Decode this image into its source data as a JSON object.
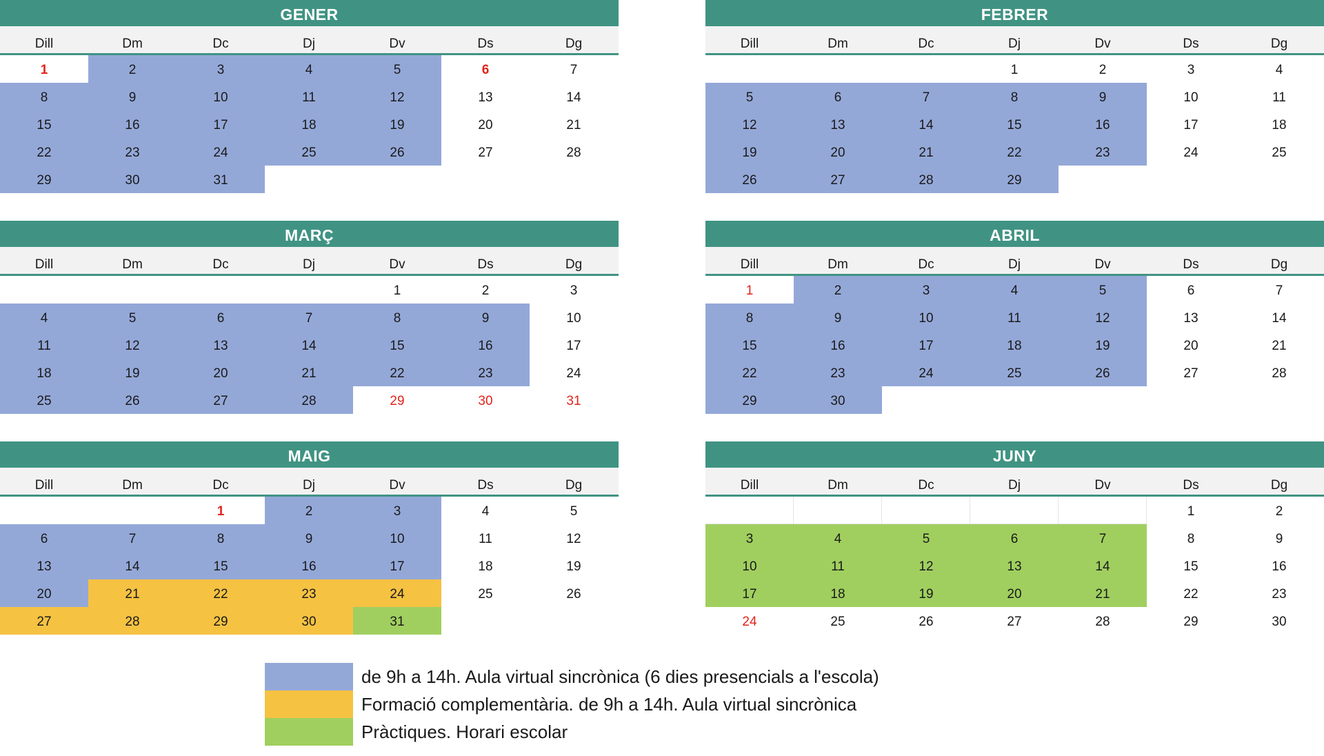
{
  "colors": {
    "header": "#409383",
    "header_line": "#409383",
    "blue": "#94a8d8",
    "yellow": "#f5c242",
    "green": "#a0cf5f",
    "red": "#e0241b"
  },
  "weekdays": [
    "Dill",
    "Dm",
    "Dc",
    "Dj",
    "Dv",
    "Ds",
    "Dg"
  ],
  "months": [
    {
      "name": "GENER",
      "cells": [
        {
          "t": "1",
          "c": "",
          "r": true,
          "b": true
        },
        {
          "t": "2",
          "c": "blue"
        },
        {
          "t": "3",
          "c": "blue"
        },
        {
          "t": "4",
          "c": "blue"
        },
        {
          "t": "5",
          "c": "blue"
        },
        {
          "t": "6",
          "c": "",
          "r": true,
          "b": true
        },
        {
          "t": "7",
          "c": ""
        },
        {
          "t": "8",
          "c": "blue"
        },
        {
          "t": "9",
          "c": "blue"
        },
        {
          "t": "10",
          "c": "blue"
        },
        {
          "t": "11",
          "c": "blue"
        },
        {
          "t": "12",
          "c": "blue"
        },
        {
          "t": "13",
          "c": ""
        },
        {
          "t": "14",
          "c": ""
        },
        {
          "t": "15",
          "c": "blue"
        },
        {
          "t": "16",
          "c": "blue"
        },
        {
          "t": "17",
          "c": "blue"
        },
        {
          "t": "18",
          "c": "blue"
        },
        {
          "t": "19",
          "c": "blue"
        },
        {
          "t": "20",
          "c": ""
        },
        {
          "t": "21",
          "c": ""
        },
        {
          "t": "22",
          "c": "blue"
        },
        {
          "t": "23",
          "c": "blue"
        },
        {
          "t": "24",
          "c": "blue"
        },
        {
          "t": "25",
          "c": "blue"
        },
        {
          "t": "26",
          "c": "blue"
        },
        {
          "t": "27",
          "c": ""
        },
        {
          "t": "28",
          "c": ""
        },
        {
          "t": "29",
          "c": "blue"
        },
        {
          "t": "30",
          "c": "blue"
        },
        {
          "t": "31",
          "c": "blue"
        },
        {
          "t": "",
          "c": ""
        },
        {
          "t": "",
          "c": ""
        },
        {
          "t": "",
          "c": ""
        },
        {
          "t": "",
          "c": ""
        }
      ]
    },
    {
      "name": "FEBRER",
      "cells": [
        {
          "t": "",
          "c": ""
        },
        {
          "t": "",
          "c": ""
        },
        {
          "t": "",
          "c": ""
        },
        {
          "t": "1",
          "c": ""
        },
        {
          "t": "2",
          "c": ""
        },
        {
          "t": "3",
          "c": ""
        },
        {
          "t": "4",
          "c": ""
        },
        {
          "t": "5",
          "c": "blue"
        },
        {
          "t": "6",
          "c": "blue"
        },
        {
          "t": "7",
          "c": "blue"
        },
        {
          "t": "8",
          "c": "blue"
        },
        {
          "t": "9",
          "c": "blue"
        },
        {
          "t": "10",
          "c": ""
        },
        {
          "t": "11",
          "c": ""
        },
        {
          "t": "12",
          "c": "blue"
        },
        {
          "t": "13",
          "c": "blue"
        },
        {
          "t": "14",
          "c": "blue"
        },
        {
          "t": "15",
          "c": "blue"
        },
        {
          "t": "16",
          "c": "blue"
        },
        {
          "t": "17",
          "c": ""
        },
        {
          "t": "18",
          "c": ""
        },
        {
          "t": "19",
          "c": "blue"
        },
        {
          "t": "20",
          "c": "blue"
        },
        {
          "t": "21",
          "c": "blue"
        },
        {
          "t": "22",
          "c": "blue"
        },
        {
          "t": "23",
          "c": "blue"
        },
        {
          "t": "24",
          "c": ""
        },
        {
          "t": "25",
          "c": ""
        },
        {
          "t": "26",
          "c": "blue"
        },
        {
          "t": "27",
          "c": "blue"
        },
        {
          "t": "28",
          "c": "blue"
        },
        {
          "t": "29",
          "c": "blue"
        },
        {
          "t": "",
          "c": ""
        },
        {
          "t": "",
          "c": ""
        },
        {
          "t": "",
          "c": ""
        }
      ]
    },
    {
      "name": "MARÇ",
      "cells": [
        {
          "t": "",
          "c": ""
        },
        {
          "t": "",
          "c": ""
        },
        {
          "t": "",
          "c": ""
        },
        {
          "t": "",
          "c": ""
        },
        {
          "t": "1",
          "c": ""
        },
        {
          "t": "2",
          "c": ""
        },
        {
          "t": "3",
          "c": ""
        },
        {
          "t": "4",
          "c": "blue"
        },
        {
          "t": "5",
          "c": "blue"
        },
        {
          "t": "6",
          "c": "blue"
        },
        {
          "t": "7",
          "c": "blue"
        },
        {
          "t": "8",
          "c": "blue"
        },
        {
          "t": "9",
          "c": "blue"
        },
        {
          "t": "10",
          "c": ""
        },
        {
          "t": "11",
          "c": "blue"
        },
        {
          "t": "12",
          "c": "blue"
        },
        {
          "t": "13",
          "c": "blue"
        },
        {
          "t": "14",
          "c": "blue"
        },
        {
          "t": "15",
          "c": "blue"
        },
        {
          "t": "16",
          "c": "blue"
        },
        {
          "t": "17",
          "c": ""
        },
        {
          "t": "18",
          "c": "blue"
        },
        {
          "t": "19",
          "c": "blue"
        },
        {
          "t": "20",
          "c": "blue"
        },
        {
          "t": "21",
          "c": "blue"
        },
        {
          "t": "22",
          "c": "blue"
        },
        {
          "t": "23",
          "c": "blue"
        },
        {
          "t": "24",
          "c": ""
        },
        {
          "t": "25",
          "c": "blue"
        },
        {
          "t": "26",
          "c": "blue"
        },
        {
          "t": "27",
          "c": "blue"
        },
        {
          "t": "28",
          "c": "blue"
        },
        {
          "t": "29",
          "c": "",
          "r": true
        },
        {
          "t": "30",
          "c": "",
          "r": true
        },
        {
          "t": "31",
          "c": "",
          "r": true
        }
      ]
    },
    {
      "name": "ABRIL",
      "cells": [
        {
          "t": "1",
          "c": "",
          "r": true
        },
        {
          "t": "2",
          "c": "blue"
        },
        {
          "t": "3",
          "c": "blue"
        },
        {
          "t": "4",
          "c": "blue"
        },
        {
          "t": "5",
          "c": "blue"
        },
        {
          "t": "6",
          "c": ""
        },
        {
          "t": "7",
          "c": ""
        },
        {
          "t": "8",
          "c": "blue"
        },
        {
          "t": "9",
          "c": "blue"
        },
        {
          "t": "10",
          "c": "blue"
        },
        {
          "t": "11",
          "c": "blue"
        },
        {
          "t": "12",
          "c": "blue"
        },
        {
          "t": "13",
          "c": ""
        },
        {
          "t": "14",
          "c": ""
        },
        {
          "t": "15",
          "c": "blue"
        },
        {
          "t": "16",
          "c": "blue"
        },
        {
          "t": "17",
          "c": "blue"
        },
        {
          "t": "18",
          "c": "blue"
        },
        {
          "t": "19",
          "c": "blue"
        },
        {
          "t": "20",
          "c": ""
        },
        {
          "t": "21",
          "c": ""
        },
        {
          "t": "22",
          "c": "blue"
        },
        {
          "t": "23",
          "c": "blue"
        },
        {
          "t": "24",
          "c": "blue"
        },
        {
          "t": "25",
          "c": "blue"
        },
        {
          "t": "26",
          "c": "blue"
        },
        {
          "t": "27",
          "c": ""
        },
        {
          "t": "28",
          "c": ""
        },
        {
          "t": "29",
          "c": "blue"
        },
        {
          "t": "30",
          "c": "blue"
        },
        {
          "t": "",
          "c": ""
        },
        {
          "t": "",
          "c": ""
        },
        {
          "t": "",
          "c": ""
        },
        {
          "t": "",
          "c": ""
        },
        {
          "t": "",
          "c": ""
        }
      ]
    },
    {
      "name": "MAIG",
      "cells": [
        {
          "t": "",
          "c": ""
        },
        {
          "t": "",
          "c": ""
        },
        {
          "t": "1",
          "c": "",
          "r": true,
          "b": true
        },
        {
          "t": "2",
          "c": "blue"
        },
        {
          "t": "3",
          "c": "blue"
        },
        {
          "t": "4",
          "c": ""
        },
        {
          "t": "5",
          "c": ""
        },
        {
          "t": "6",
          "c": "blue"
        },
        {
          "t": "7",
          "c": "blue"
        },
        {
          "t": "8",
          "c": "blue"
        },
        {
          "t": "9",
          "c": "blue"
        },
        {
          "t": "10",
          "c": "blue"
        },
        {
          "t": "11",
          "c": ""
        },
        {
          "t": "12",
          "c": ""
        },
        {
          "t": "13",
          "c": "blue"
        },
        {
          "t": "14",
          "c": "blue"
        },
        {
          "t": "15",
          "c": "blue"
        },
        {
          "t": "16",
          "c": "blue"
        },
        {
          "t": "17",
          "c": "blue"
        },
        {
          "t": "18",
          "c": ""
        },
        {
          "t": "19",
          "c": ""
        },
        {
          "t": "20",
          "c": "blue"
        },
        {
          "t": "21",
          "c": "yellow"
        },
        {
          "t": "22",
          "c": "yellow"
        },
        {
          "t": "23",
          "c": "yellow"
        },
        {
          "t": "24",
          "c": "yellow"
        },
        {
          "t": "25",
          "c": ""
        },
        {
          "t": "26",
          "c": ""
        },
        {
          "t": "27",
          "c": "yellow"
        },
        {
          "t": "28",
          "c": "yellow"
        },
        {
          "t": "29",
          "c": "yellow"
        },
        {
          "t": "30",
          "c": "yellow"
        },
        {
          "t": "31",
          "c": "green"
        },
        {
          "t": "",
          "c": ""
        },
        {
          "t": "",
          "c": ""
        }
      ]
    },
    {
      "name": "JUNY",
      "cells": [
        {
          "t": "",
          "c": "",
          "o": true
        },
        {
          "t": "",
          "c": "",
          "o": true
        },
        {
          "t": "",
          "c": "",
          "o": true
        },
        {
          "t": "",
          "c": "",
          "o": true
        },
        {
          "t": "",
          "c": "",
          "o": true
        },
        {
          "t": "1",
          "c": ""
        },
        {
          "t": "2",
          "c": ""
        },
        {
          "t": "3",
          "c": "green"
        },
        {
          "t": "4",
          "c": "green"
        },
        {
          "t": "5",
          "c": "green"
        },
        {
          "t": "6",
          "c": "green"
        },
        {
          "t": "7",
          "c": "green"
        },
        {
          "t": "8",
          "c": ""
        },
        {
          "t": "9",
          "c": ""
        },
        {
          "t": "10",
          "c": "green"
        },
        {
          "t": "11",
          "c": "green"
        },
        {
          "t": "12",
          "c": "green"
        },
        {
          "t": "13",
          "c": "green"
        },
        {
          "t": "14",
          "c": "green"
        },
        {
          "t": "15",
          "c": ""
        },
        {
          "t": "16",
          "c": ""
        },
        {
          "t": "17",
          "c": "green"
        },
        {
          "t": "18",
          "c": "green"
        },
        {
          "t": "19",
          "c": "green"
        },
        {
          "t": "20",
          "c": "green"
        },
        {
          "t": "21",
          "c": "green"
        },
        {
          "t": "22",
          "c": ""
        },
        {
          "t": "23",
          "c": ""
        },
        {
          "t": "24",
          "c": "",
          "r": true
        },
        {
          "t": "25",
          "c": ""
        },
        {
          "t": "26",
          "c": ""
        },
        {
          "t": "27",
          "c": ""
        },
        {
          "t": "28",
          "c": ""
        },
        {
          "t": "29",
          "c": ""
        },
        {
          "t": "30",
          "c": ""
        }
      ]
    }
  ],
  "legend": [
    {
      "color": "blue",
      "text": "de 9h a 14h. Aula virtual sincrònica (6 dies presencials a l'escola)"
    },
    {
      "color": "yellow",
      "text": "Formació complementària. de 9h a 14h. Aula virtual sincrònica"
    },
    {
      "color": "green",
      "text": "Pràctiques. Horari escolar"
    }
  ]
}
